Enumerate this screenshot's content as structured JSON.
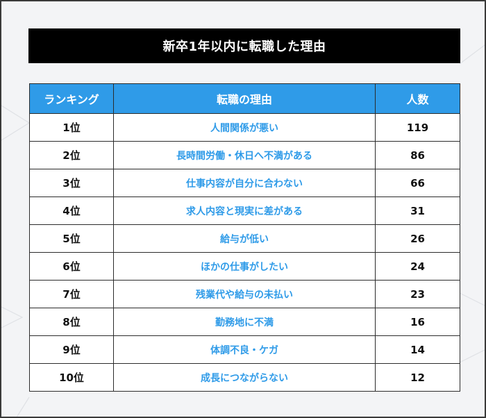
{
  "title": "新卒1年以内に転職した理由",
  "table": {
    "headers": [
      "ランキング",
      "転職の理由",
      "人数"
    ],
    "rows": [
      {
        "rank": "1位",
        "reason": "人間関係が悪い",
        "count": "119"
      },
      {
        "rank": "2位",
        "reason": "長時間労働・休日へ不満がある",
        "count": "86"
      },
      {
        "rank": "3位",
        "reason": "仕事内容が自分に合わない",
        "count": "66"
      },
      {
        "rank": "4位",
        "reason": "求人内容と現実に差がある",
        "count": "31"
      },
      {
        "rank": "5位",
        "reason": "給与が低い",
        "count": "26"
      },
      {
        "rank": "6位",
        "reason": "ほかの仕事がしたい",
        "count": "24"
      },
      {
        "rank": "7位",
        "reason": "残業代や給与の未払い",
        "count": "23"
      },
      {
        "rank": "8位",
        "reason": "勤務地に不満",
        "count": "16"
      },
      {
        "rank": "9位",
        "reason": "体調不良・ケガ",
        "count": "14"
      },
      {
        "rank": "10位",
        "reason": "成長につながらない",
        "count": "12"
      }
    ]
  },
  "colors": {
    "header_bg": "#2f9be8",
    "reason_text": "#2f9be8",
    "title_bg": "#000000",
    "page_bg": "#f3f4f6"
  }
}
